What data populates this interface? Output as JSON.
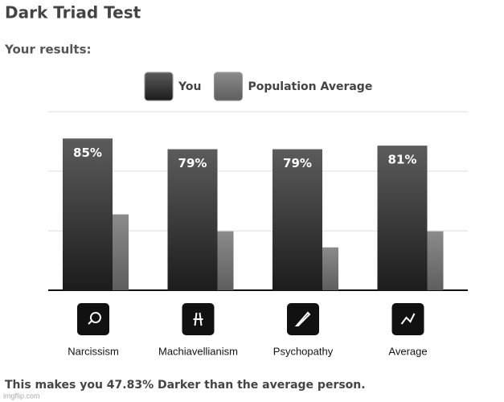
{
  "title": "Dark Triad Test",
  "subtitle": "Your results:",
  "chart_data": {
    "type": "bar",
    "categories": [
      "Narcissism",
      "Machiavellianism",
      "Psychopathy",
      "Average"
    ],
    "series": [
      {
        "name": "You",
        "color": "#1c1c1c",
        "values": [
          85,
          79,
          79,
          81
        ],
        "value_labels": [
          "85%",
          "79%",
          "79%",
          "81%"
        ]
      },
      {
        "name": "Population Average",
        "color": "#5e5e5e",
        "values": [
          42.5,
          33,
          24,
          33
        ]
      }
    ],
    "ylim": [
      0,
      100
    ],
    "yticks": [
      0,
      33.3,
      66.7,
      100
    ],
    "grid": true
  },
  "footer": "This makes you 47.83% Darker than the average person.",
  "watermark": "imgflip.com"
}
